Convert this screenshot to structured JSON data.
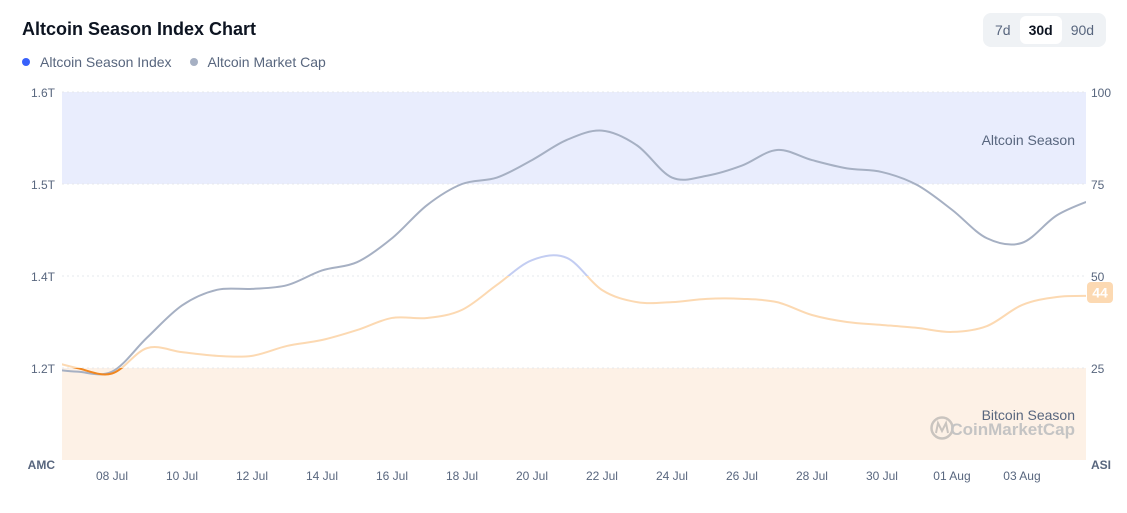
{
  "title": "Altcoin Season Index Chart",
  "legend": [
    {
      "label": "Altcoin Season Index",
      "color": "#3861fb"
    },
    {
      "label": "Altcoin Market Cap",
      "color": "#a6b0c3"
    }
  ],
  "range_buttons": [
    {
      "label": "7d",
      "active": false
    },
    {
      "label": "30d",
      "active": true
    },
    {
      "label": "90d",
      "active": false
    }
  ],
  "watermark": "CoinMarketCap",
  "chart_data": {
    "type": "line",
    "left_axis": {
      "label": "AMC",
      "ticks": [
        "1.6T",
        "1.5T",
        "1.4T",
        "1.2T"
      ]
    },
    "right_axis": {
      "label": "ASI",
      "ticks": [
        "100",
        "75",
        "50",
        "25"
      ],
      "ylim": [
        0,
        100
      ]
    },
    "x_ticks": [
      "08 Jul",
      "10 Jul",
      "12 Jul",
      "14 Jul",
      "16 Jul",
      "18 Jul",
      "20 Jul",
      "22 Jul",
      "24 Jul",
      "26 Jul",
      "28 Jul",
      "30 Jul",
      "01 Aug",
      "03 Aug"
    ],
    "bands": [
      {
        "label": "Altcoin Season",
        "range": [
          75,
          100
        ],
        "color": "#e9edfd"
      },
      {
        "label": "Bitcoin Season",
        "range": [
          0,
          25
        ],
        "color": "#fdf1e6"
      }
    ],
    "x": [
      "06 Jul",
      "07 Jul",
      "08 Jul",
      "09 Jul",
      "10 Jul",
      "11 Jul",
      "12 Jul",
      "13 Jul",
      "14 Jul",
      "15 Jul",
      "16 Jul",
      "17 Jul",
      "18 Jul",
      "19 Jul",
      "20 Jul",
      "21 Jul",
      "22 Jul",
      "23 Jul",
      "24 Jul",
      "25 Jul",
      "26 Jul",
      "27 Jul",
      "28 Jul",
      "29 Jul",
      "30 Jul",
      "31 Jul",
      "01 Aug",
      "02 Aug",
      "03 Aug",
      "04 Aug",
      "05 Aug"
    ],
    "series": [
      {
        "name": "Altcoin Season Index",
        "axis": "right",
        "values": [
          27.5,
          25,
          23.5,
          30.4,
          29.3,
          28.3,
          28.3,
          31,
          32.6,
          35.3,
          38.6,
          38.6,
          40.8,
          47.6,
          54.3,
          54.9,
          46.2,
          42.9,
          42.9,
          43.8,
          43.8,
          42.9,
          39.4,
          37.5,
          36.7,
          35.9,
          34.8,
          36.4,
          42.1,
          44.3,
          44.6
        ]
      },
      {
        "name": "Altcoin Market Cap",
        "axis": "left",
        "unit": "T",
        "color": "#a6b0c3",
        "values": [
          1.3,
          1.296,
          1.296,
          1.333,
          1.368,
          1.385,
          1.386,
          1.39,
          1.406,
          1.415,
          1.441,
          1.477,
          1.5,
          1.507,
          1.526,
          1.548,
          1.558,
          1.542,
          1.507,
          1.509,
          1.52,
          1.537,
          1.526,
          1.517,
          1.513,
          1.499,
          1.472,
          1.441,
          1.436,
          1.466,
          1.483
        ]
      }
    ],
    "index_colors": {
      "bitcoin": "#f0861f",
      "neutral": "#fcd9b2",
      "alt_lean": "#c3cdf2",
      "altcoin": "#3861fb"
    },
    "latest_value": "44"
  }
}
